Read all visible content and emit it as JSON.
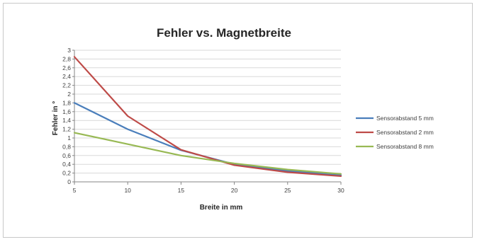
{
  "chart_data": {
    "type": "line",
    "title": "Fehler vs. Magnetbreite",
    "xlabel": "Breite in mm",
    "ylabel": "Fehler in °",
    "x": [
      5,
      10,
      15,
      20,
      25,
      30
    ],
    "xlim": [
      5,
      30
    ],
    "ylim": [
      0,
      3
    ],
    "xticks": [
      "5",
      "10",
      "15",
      "20",
      "25",
      "30"
    ],
    "yticks": [
      "0",
      "0,2",
      "0,4",
      "0,6",
      "0,8",
      "1",
      "1,2",
      "1,4",
      "1,6",
      "1,8",
      "2",
      "2,2",
      "2,4",
      "2,6",
      "2,8",
      "3"
    ],
    "grid": true,
    "legend_position": "right",
    "series": [
      {
        "name": "Sensorabstand 5 mm",
        "color": "#4a7ebb",
        "values": [
          1.8,
          1.2,
          0.72,
          0.4,
          0.25,
          0.15
        ]
      },
      {
        "name": "Sensorabstand 2 mm",
        "color": "#be4b48",
        "values": [
          2.85,
          1.5,
          0.73,
          0.38,
          0.22,
          0.13
        ]
      },
      {
        "name": "Sensorabstand 8 mm",
        "color": "#98b954",
        "values": [
          1.12,
          0.86,
          0.6,
          0.42,
          0.28,
          0.18
        ]
      }
    ]
  }
}
